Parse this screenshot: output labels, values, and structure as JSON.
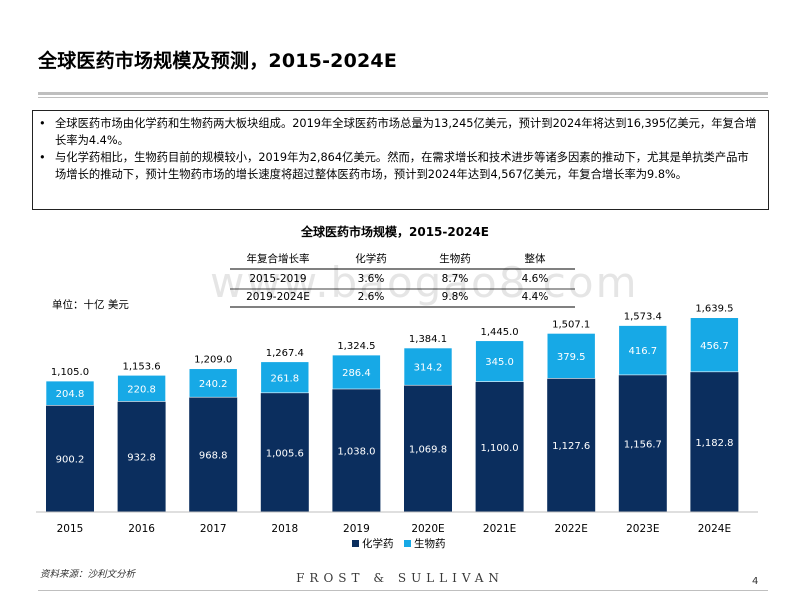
{
  "title": "全球医药市场规模及预测，2015-2024E",
  "summary": {
    "bullets": [
      "全球医药市场由化学药和生物药两大板块组成。2019年全球医药市场总量为13,245亿美元，预计到2024年将达到16,395亿美元，年复合增长率为4.4%。",
      "与化学药相比，生物药目前的规模较小，2019年为2,864亿美元。然而，在需求增长和技术进步等诸多因素的推动下，尤其是单抗类产品市场增长的推动下，预计生物药市场的增长速度将超过整体医药市场，预计到2024年达到4,567亿美元，年复合增长率为9.8%。"
    ]
  },
  "watermark": "www.baogao8.com",
  "source": "资料来源：沙利文分析",
  "brand": "FROST & SULLIVAN",
  "page_number": "4",
  "colors": {
    "chemical": "#0b2e5e",
    "biologic": "#17a9e6",
    "biologic_label": "#ffffff",
    "chemical_label": "#ffffff"
  },
  "chart_data": {
    "type": "bar",
    "stacked": true,
    "title": "全球医药市场规模，2015-2024E",
    "unit_label": "单位：十亿 美元",
    "categories": [
      "2015",
      "2016",
      "2017",
      "2018",
      "2019",
      "2020E",
      "2021E",
      "2022E",
      "2023E",
      "2024E"
    ],
    "series": [
      {
        "name": "化学药",
        "values": [
          900.2,
          932.8,
          968.8,
          1005.6,
          1038.0,
          1069.8,
          1100.0,
          1127.6,
          1156.7,
          1182.8
        ],
        "labels": [
          "900.2",
          "932.8",
          "968.8",
          "1,005.6",
          "1,038.0",
          "1,069.8",
          "1,100.0",
          "1,127.6",
          "1,156.7",
          "1,182.8"
        ]
      },
      {
        "name": "生物药",
        "values": [
          204.8,
          220.8,
          240.2,
          261.8,
          286.4,
          314.2,
          345.0,
          379.5,
          416.7,
          456.7
        ],
        "labels": [
          "204.8",
          "220.8",
          "240.2",
          "261.8",
          "286.4",
          "314.2",
          "345.0",
          "379.5",
          "416.7",
          "456.7"
        ]
      }
    ],
    "totals": [
      "1,105.0",
      "1,153.6",
      "1,209.0",
      "1,267.4",
      "1,324.5",
      "1,384.1",
      "1,445.0",
      "1,507.1",
      "1,573.4",
      "1,639.5"
    ],
    "legend": [
      "化学药",
      "生物药"
    ],
    "legend_position": "bottom-center",
    "ylim": [
      0,
      1800
    ],
    "cagr_table": {
      "headers": [
        "年复合增长率",
        "化学药",
        "生物药",
        "整体"
      ],
      "rows": [
        [
          "2015-2019",
          "3.6%",
          "8.7%",
          "4.6%"
        ],
        [
          "2019-2024E",
          "2.6%",
          "9.8%",
          "4.4%"
        ]
      ]
    }
  }
}
